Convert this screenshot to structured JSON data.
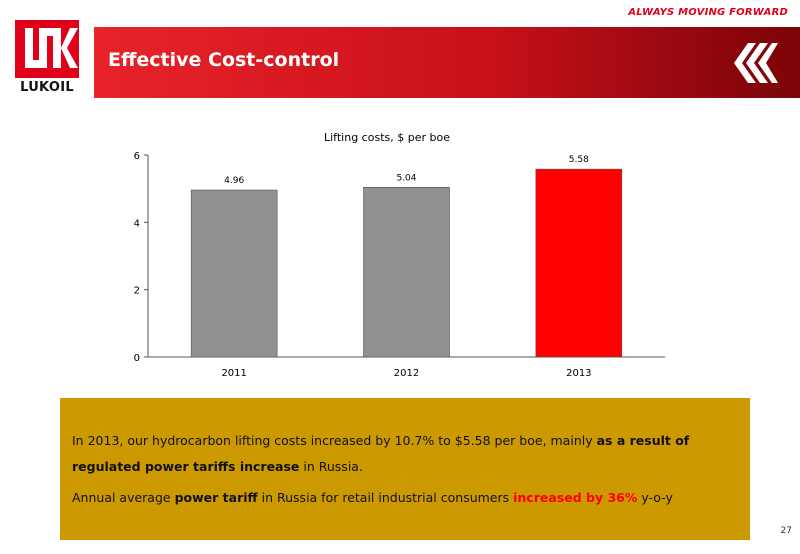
{
  "header": {
    "tagline": "ALWAYS MOVING FORWARD",
    "logo_text": "LUKOIL",
    "title": "Effective Cost-control"
  },
  "colors": {
    "brand_red": "#e8232a",
    "bar_gray": "#909090",
    "bar_red": "#ff0000",
    "infobox": "#cc9900"
  },
  "chart_data": {
    "type": "bar",
    "title": "Lifting costs, $ per boe",
    "categories": [
      "2011",
      "2012",
      "2013"
    ],
    "values": [
      4.96,
      5.04,
      5.58
    ],
    "value_labels": [
      "4.96",
      "5.04",
      "5.58"
    ],
    "bar_colors": [
      "#909090",
      "#909090",
      "#ff0000"
    ],
    "ylim": [
      0,
      6
    ],
    "yticks": [
      "0",
      "2",
      "4",
      "6"
    ],
    "grid": false,
    "legend": "none"
  },
  "info": {
    "line1_a": "In 2013, our hydrocarbon lifting costs increased by 10.7% to $5.58 per boe, mainly ",
    "line1_b": "as a result of",
    "line2_a": "regulated power tariffs increase",
    "line2_b": " in Russia.",
    "line3_a": "Annual average ",
    "line3_b": "power tariff",
    "line3_c": " in Russia for retail industrial consumers ",
    "line3_d": "increased by 36%",
    "line3_e": " y-o-y"
  },
  "page_number": "27"
}
